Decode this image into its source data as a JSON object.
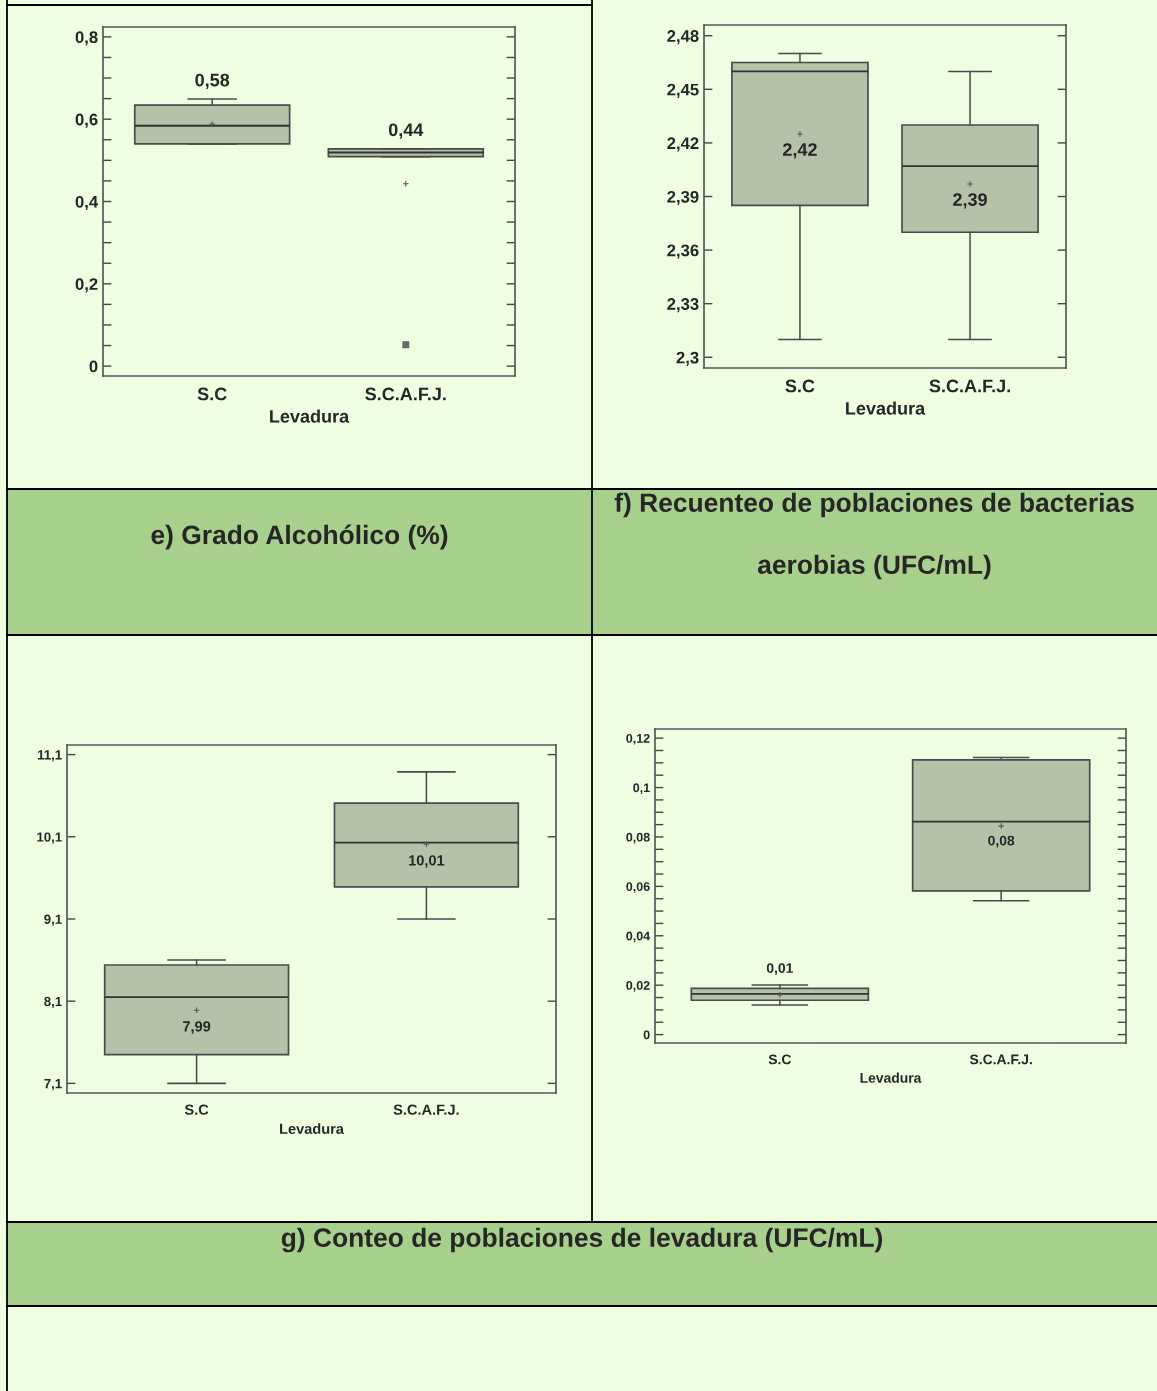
{
  "chart_data": [
    {
      "type": "box",
      "title": "e) Grado Alcohólico (%)",
      "categories": [
        "S.C",
        "S.C.A.F.J."
      ],
      "xlabel": "Levadura",
      "color": "#b5c2a8",
      "boxes": [
        {
          "low": 0.54,
          "q1": 0.54,
          "median": 0.584,
          "q3": 0.634,
          "high": 0.649,
          "mean": 0.588
        },
        {
          "low": 0.509,
          "q1": 0.509,
          "median": 0.519,
          "q3": 0.528,
          "high": 0.528,
          "mean": 0.443,
          "outliers": [
            0.052
          ]
        }
      ],
      "ylim": [
        -0.024,
        0.824
      ],
      "yticks": [
        0,
        {
          "value": 0.05,
          "label": null
        },
        {
          "value": 0.1,
          "label": null
        },
        {
          "value": 0.15,
          "label": null
        },
        {
          "value": 0.2,
          "label": "0,2"
        },
        {
          "value": 0.25,
          "label": null
        },
        {
          "value": 0.3,
          "label": null
        },
        {
          "value": 0.35,
          "label": null
        },
        {
          "value": 0.4,
          "label": "0,4"
        },
        {
          "value": 0.45,
          "label": null
        },
        {
          "value": 0.5,
          "label": null
        },
        {
          "value": 0.55,
          "label": null
        },
        {
          "value": 0.6,
          "label": "0,6"
        },
        {
          "value": 0.65,
          "label": null
        },
        {
          "value": 0.7,
          "label": null
        },
        {
          "value": 0.75,
          "label": null
        },
        {
          "value": 0.8,
          "label": "0,8"
        }
      ],
      "annotations": [
        "0,58",
        "0,44"
      ]
    },
    {
      "type": "box",
      "title": "f) Recuenteo de poblaciones de bacterias aerobias (UFC/mL)",
      "categories": [
        "S.C",
        "S.C.A.F.J."
      ],
      "xlabel": "Levadura",
      "color": "#b5c2a8",
      "boxes": [
        {
          "low": 2.31,
          "q1": 2.385,
          "median": 2.46,
          "q3": 2.465,
          "high": 2.47,
          "mean": 2.425
        },
        {
          "low": 2.31,
          "q1": 2.37,
          "median": 2.407,
          "q3": 2.43,
          "high": 2.46,
          "mean": 2.397
        }
      ],
      "ylim": [
        2.294,
        2.486
      ],
      "yticks": [
        {
          "value": 2.3,
          "label": "2,3"
        },
        {
          "value": 2.33,
          "label": "2,33"
        },
        {
          "value": 2.36,
          "label": "2,36"
        },
        {
          "value": 2.39,
          "label": "2,39"
        },
        {
          "value": 2.42,
          "label": "2,42"
        },
        {
          "value": 2.45,
          "label": "2,45"
        },
        {
          "value": 2.48,
          "label": "2,48"
        }
      ],
      "annotations": [
        "2,42",
        "2,39"
      ]
    },
    {
      "type": "box",
      "title": "g) Conteo de poblaciones de levadura (UFC/mL)",
      "categories": [
        "S.C",
        "S.C.A.F.J."
      ],
      "xlabel": "Levadura",
      "color": "#b5c2a8",
      "boxes": [
        {
          "low": 7.1,
          "q1": 7.45,
          "median": 8.15,
          "q3": 8.54,
          "high": 8.6,
          "mean": 7.99
        },
        {
          "low": 9.1,
          "q1": 9.49,
          "median": 10.03,
          "q3": 10.51,
          "high": 10.89,
          "mean": 10.01
        }
      ],
      "ylim": [
        6.983,
        11.217
      ],
      "yticks": [
        {
          "value": 7.1,
          "label": "7,1"
        },
        {
          "value": 8.1,
          "label": "8,1"
        },
        {
          "value": 9.1,
          "label": "9,1"
        },
        {
          "value": 10.1,
          "label": "10,1"
        },
        {
          "value": 11.1,
          "label": "11,1"
        }
      ],
      "annotations": [
        "7,99",
        "10,01"
      ]
    },
    {
      "type": "box",
      "categories": [
        "S.C",
        "S.C.A.F.J."
      ],
      "xlabel": "Levadura",
      "color": "#b5c2a8",
      "boxes": [
        {
          "low": 0.012,
          "q1": 0.0139,
          "median": 0.0165,
          "q3": 0.0187,
          "high": 0.0201,
          "mean": 0.0161
        },
        {
          "low": 0.0542,
          "q1": 0.0582,
          "median": 0.0862,
          "q3": 0.1112,
          "high": 0.1122,
          "mean": 0.0844
        }
      ],
      "ylim": [
        -0.0034,
        0.1237
      ],
      "yticks": [
        0,
        {
          "value": 0.005,
          "label": null
        },
        {
          "value": 0.01,
          "label": null
        },
        {
          "value": 0.015,
          "label": null
        },
        {
          "value": 0.02,
          "label": "0,02"
        },
        {
          "value": 0.025,
          "label": null
        },
        {
          "value": 0.03,
          "label": null
        },
        {
          "value": 0.035,
          "label": null
        },
        {
          "value": 0.04,
          "label": "0,04"
        },
        {
          "value": 0.045,
          "label": null
        },
        {
          "value": 0.05,
          "label": null
        },
        {
          "value": 0.055,
          "label": null
        },
        {
          "value": 0.06,
          "label": "0,06"
        },
        {
          "value": 0.065,
          "label": null
        },
        {
          "value": 0.07,
          "label": null
        },
        {
          "value": 0.075,
          "label": null
        },
        {
          "value": 0.08,
          "label": "0,08"
        },
        {
          "value": 0.085,
          "label": null
        },
        {
          "value": 0.09,
          "label": null
        },
        {
          "value": 0.095,
          "label": null
        },
        {
          "value": 0.1,
          "label": "0,1"
        },
        {
          "value": 0.105,
          "label": null
        },
        {
          "value": 0.11,
          "label": null
        },
        {
          "value": 0.115,
          "label": null
        },
        {
          "value": 0.12,
          "label": "0,12"
        }
      ],
      "annotations": [
        "0,01",
        "0,08"
      ]
    }
  ]
}
